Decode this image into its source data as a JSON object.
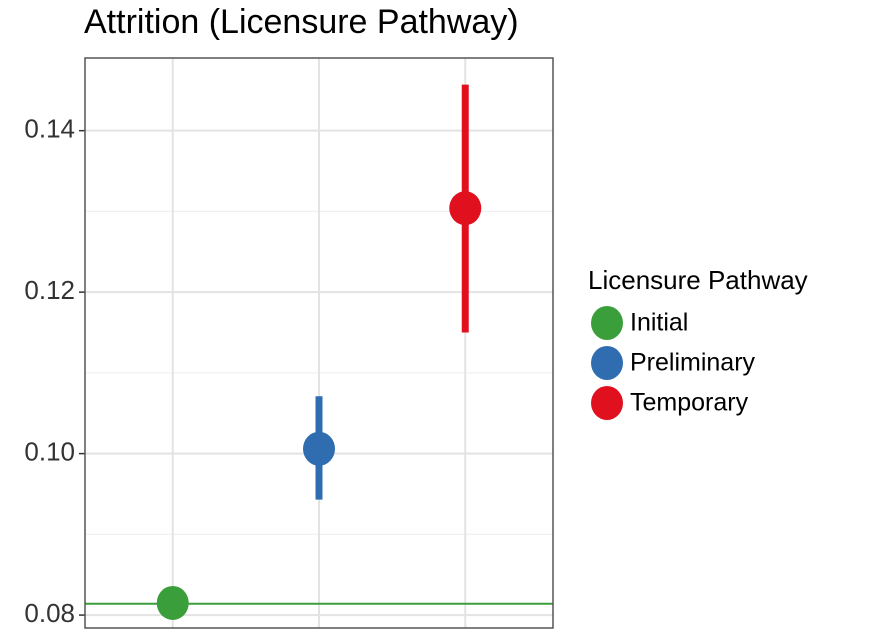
{
  "chart_data": {
    "type": "pointrange",
    "title": "Attrition (Licensure Pathway)",
    "categories": [
      "Initial",
      "Preliminary",
      "Temporary"
    ],
    "values": [
      0.0815,
      0.1006,
      0.1304
    ],
    "lower": [
      null,
      0.0943,
      0.115
    ],
    "upper": [
      null,
      0.1071,
      0.1457
    ],
    "colors": [
      "#3a9e3a",
      "#2f6db0",
      "#e0101e"
    ],
    "reference_line": {
      "value": 0.0814,
      "color": "#3a9e3a"
    },
    "legend_title": "Licensure Pathway",
    "legend": "right",
    "ylim": [
      0.0784,
      0.149
    ],
    "yticks": [
      0.08,
      {
        "value": 0.1,
        "label": "0.10"
      },
      0.12,
      0.14
    ],
    "minor_yticks": [
      0.09,
      0.11,
      0.13
    ],
    "grid": true
  }
}
